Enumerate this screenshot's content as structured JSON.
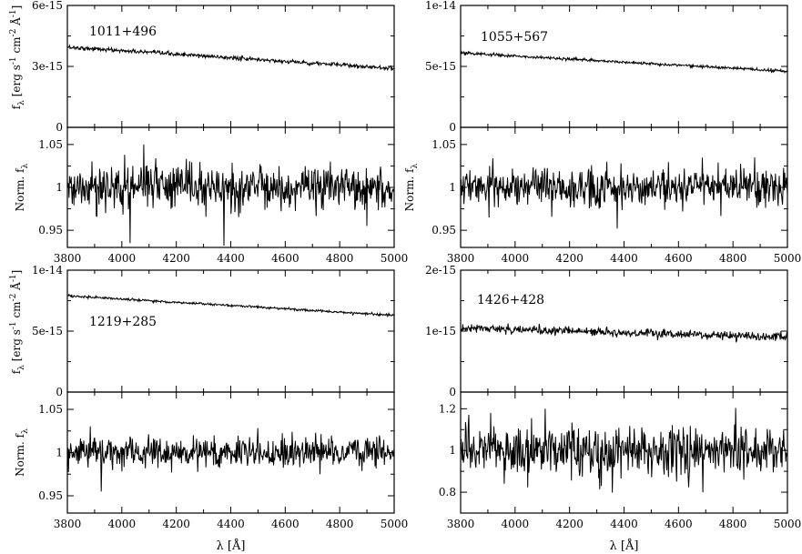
{
  "chart_data": [
    {
      "type": "line",
      "panel": "top-left",
      "object_label": "1011+496",
      "upper": {
        "ylabel": "f_λ [erg s^-1 cm^-2 Å^-1]",
        "ylim": [
          0,
          6e-15
        ],
        "yticks": [
          {
            "value": 0,
            "label": "0"
          },
          {
            "value": 3e-15,
            "label": "3e-15"
          },
          {
            "value": 6e-15,
            "label": "6e-15"
          }
        ],
        "trend": {
          "x": [
            3800,
            5000
          ],
          "y": [
            3.95e-15,
            2.9e-15
          ]
        },
        "noise": 5e-17
      },
      "lower": {
        "ylabel": "Norm. f_λ",
        "ylim": [
          0.93,
          1.07
        ],
        "yticks": [
          {
            "value": 0.95,
            "label": "0.95"
          },
          {
            "value": 1.0,
            "label": "1"
          },
          {
            "value": 1.05,
            "label": "1.05"
          }
        ],
        "noise": 0.013,
        "spikes": [
          {
            "x": 4030,
            "y": 0.935
          },
          {
            "x": 4080,
            "y": 1.05
          },
          {
            "x": 4375,
            "y": 0.932
          },
          {
            "x": 4900,
            "y": 0.955
          }
        ]
      },
      "xlim": [
        3800,
        5000
      ],
      "xticks": [
        "3800",
        "4000",
        "4200",
        "4400",
        "4600",
        "4800",
        "5000"
      ]
    },
    {
      "type": "line",
      "panel": "top-right",
      "object_label": "1055+567",
      "upper": {
        "ylabel": "",
        "ylim": [
          0,
          1e-14
        ],
        "yticks": [
          {
            "value": 0,
            "label": "0"
          },
          {
            "value": 5e-15,
            "label": "5e-15"
          },
          {
            "value": 1e-14,
            "label": "1e-14"
          }
        ],
        "trend": {
          "x": [
            3800,
            5000
          ],
          "y": [
            6.1e-15,
            4.6e-15
          ]
        },
        "noise": 6e-17
      },
      "lower": {
        "ylabel": "Norm. f_λ",
        "ylim": [
          0.93,
          1.07
        ],
        "yticks": [
          {
            "value": 0.95,
            "label": "0.95"
          },
          {
            "value": 1.0,
            "label": "1"
          },
          {
            "value": 1.05,
            "label": "1.05"
          }
        ],
        "noise": 0.011,
        "spikes": [
          {
            "x": 3905,
            "y": 0.965
          },
          {
            "x": 4375,
            "y": 0.952
          },
          {
            "x": 4880,
            "y": 1.035
          }
        ]
      },
      "xlim": [
        3800,
        5000
      ],
      "xticks": [
        "3800",
        "4000",
        "4200",
        "4400",
        "4600",
        "4800",
        "5000"
      ]
    },
    {
      "type": "line",
      "panel": "bottom-left",
      "object_label": "1219+285",
      "upper": {
        "ylabel": "f_λ [erg s^-1 cm^-2 Å^-1]",
        "ylim": [
          0,
          1e-14
        ],
        "yticks": [
          {
            "value": 0,
            "label": "0"
          },
          {
            "value": 5e-15,
            "label": "5e-15"
          },
          {
            "value": 1e-14,
            "label": "1e-14"
          }
        ],
        "trend": {
          "x": [
            3800,
            5000
          ],
          "y": [
            7.9e-15,
            6.3e-15
          ]
        },
        "noise": 5e-17
      },
      "lower": {
        "ylabel": "Norm. f_λ",
        "ylim": [
          0.93,
          1.07
        ],
        "yticks": [
          {
            "value": 0.95,
            "label": "0.95"
          },
          {
            "value": 1.0,
            "label": "1"
          },
          {
            "value": 1.05,
            "label": "1.05"
          }
        ],
        "noise": 0.009,
        "spikes": [
          {
            "x": 3925,
            "y": 0.955
          }
        ]
      },
      "xlabel": "λ [Å]",
      "xlim": [
        3800,
        5000
      ],
      "xticks": [
        "3800",
        "4000",
        "4200",
        "4400",
        "4600",
        "4800",
        "5000"
      ]
    },
    {
      "type": "line",
      "panel": "bottom-right",
      "object_label": "1426+428",
      "upper": {
        "ylabel": "",
        "ylim": [
          0,
          2e-15
        ],
        "yticks": [
          {
            "value": 0,
            "label": "0"
          },
          {
            "value": 1e-15,
            "label": "1e-15"
          },
          {
            "value": 2e-15,
            "label": "2e-15"
          }
        ],
        "trend": {
          "x": [
            3800,
            5000
          ],
          "y": [
            1.05e-15,
            9e-16
          ]
        },
        "noise": 3.5e-17
      },
      "lower": {
        "ylabel": "",
        "ylim": [
          0.7,
          1.28
        ],
        "yticks": [
          {
            "value": 0.8,
            "label": "0.8"
          },
          {
            "value": 1.0,
            "label": "1"
          },
          {
            "value": 1.2,
            "label": "1.2"
          }
        ],
        "noise": 0.06,
        "spikes": [
          {
            "x": 3910,
            "y": 1.18
          },
          {
            "x": 4110,
            "y": 1.2
          },
          {
            "x": 4690,
            "y": 0.8
          }
        ]
      },
      "xlabel": "λ [Å]",
      "xlim": [
        3800,
        5000
      ],
      "xticks": [
        "3800",
        "4000",
        "4200",
        "4400",
        "4600",
        "4800",
        "5000"
      ]
    }
  ]
}
